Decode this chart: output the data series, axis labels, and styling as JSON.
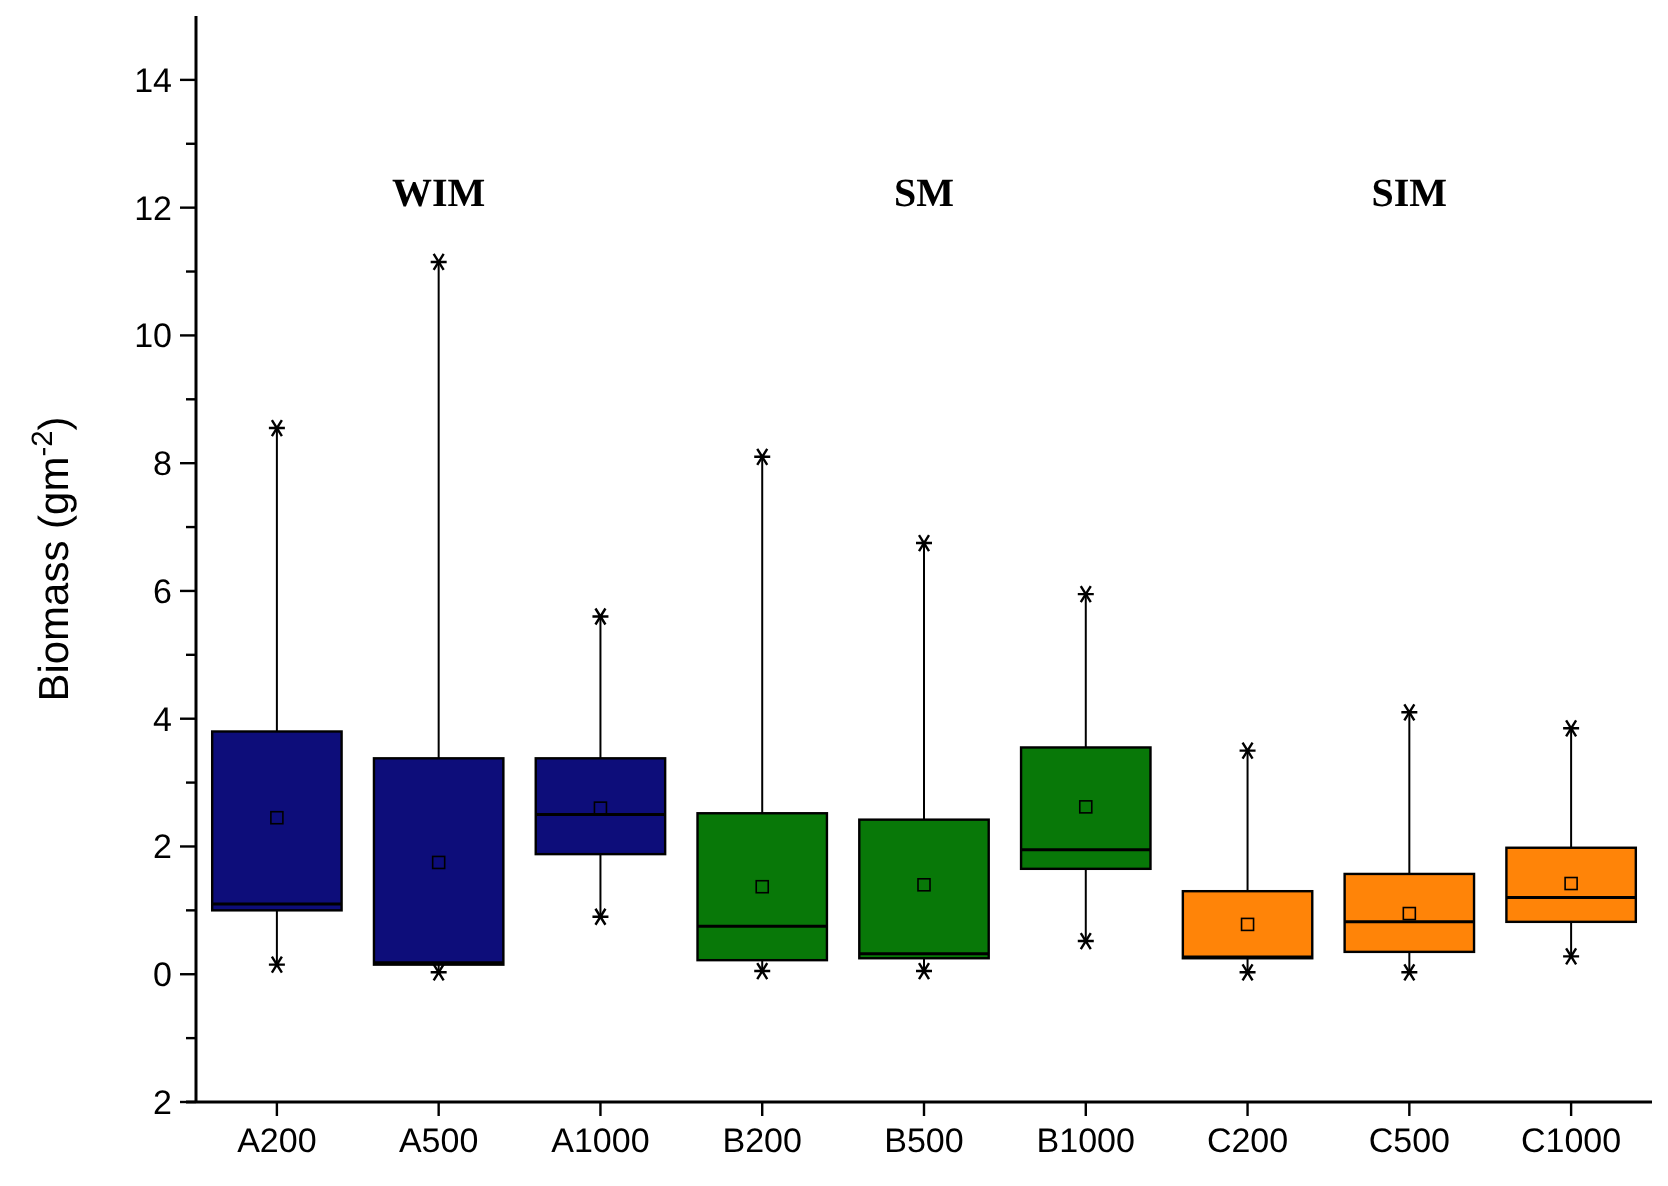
{
  "chart_data": {
    "type": "box",
    "ylabel": "Biomass (gm$^{-2}$)",
    "categories": [
      "A200",
      "A500",
      "A1000",
      "B200",
      "B500",
      "B1000",
      "C200",
      "C500",
      "C1000"
    ],
    "colors": [
      "#0d0d7a",
      "#0d0d7a",
      "#0d0d7a",
      "#087808",
      "#087808",
      "#087808",
      "#ff8408",
      "#ff8408",
      "#ff8408"
    ],
    "boxes": [
      {
        "low": 0.15,
        "q1": 1.0,
        "median": 1.1,
        "q3": 3.8,
        "high": 8.55,
        "mean": 2.45
      },
      {
        "low": 0.03,
        "q1": 0.15,
        "median": 0.18,
        "q3": 3.38,
        "high": 11.15,
        "mean": 1.75
      },
      {
        "low": 0.9,
        "q1": 1.88,
        "median": 2.5,
        "q3": 3.38,
        "high": 5.6,
        "mean": 2.6
      },
      {
        "low": 0.05,
        "q1": 0.22,
        "median": 0.75,
        "q3": 2.52,
        "high": 8.1,
        "mean": 1.37
      },
      {
        "low": 0.05,
        "q1": 0.25,
        "median": 0.32,
        "q3": 2.42,
        "high": 6.75,
        "mean": 1.4
      },
      {
        "low": 0.52,
        "q1": 1.65,
        "median": 1.95,
        "q3": 3.55,
        "high": 5.95,
        "mean": 2.62
      },
      {
        "low": 0.03,
        "q1": 0.25,
        "median": 0.27,
        "q3": 1.3,
        "high": 3.5,
        "mean": 0.78
      },
      {
        "low": 0.03,
        "q1": 0.35,
        "median": 0.82,
        "q3": 1.57,
        "high": 4.1,
        "mean": 0.95
      },
      {
        "low": 0.28,
        "q1": 0.82,
        "median": 1.2,
        "q3": 1.98,
        "high": 3.85,
        "mean": 1.42
      }
    ],
    "ylim": [
      -2,
      15
    ],
    "yticks": [
      {
        "value": -2,
        "label": "2"
      },
      {
        "value": -1,
        "label": null
      },
      0,
      {
        "value": 1,
        "label": null
      },
      2,
      {
        "value": 3,
        "label": null
      },
      4,
      {
        "value": 5,
        "label": null
      },
      6,
      {
        "value": 7,
        "label": null
      },
      8,
      {
        "value": 9,
        "label": null
      },
      10,
      {
        "value": 11,
        "label": null
      },
      12,
      {
        "value": 13,
        "label": null
      },
      14
    ],
    "annotations": [
      "WIM",
      "SM",
      "SIM"
    ],
    "grid": false
  }
}
